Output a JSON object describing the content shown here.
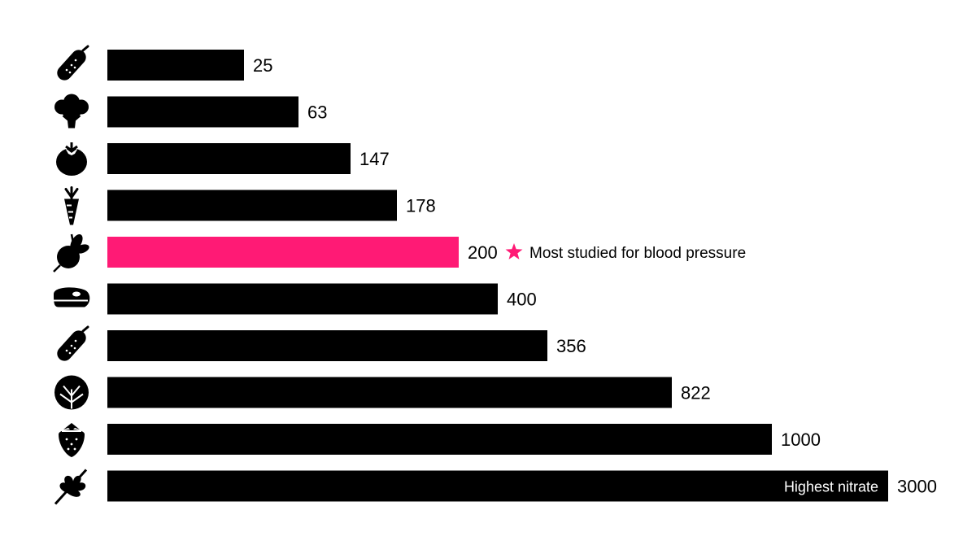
{
  "chart_data": {
    "type": "bar",
    "orientation": "horizontal",
    "categories": [
      "cucumber-icon",
      "broccoli-icon",
      "tomato-icon",
      "carrot-icon",
      "beetroot-icon",
      "steak-icon",
      "zucchini-icon",
      "cabbage-icon",
      "strawberry-icon",
      "arugula-icon"
    ],
    "values": [
      25,
      63,
      147,
      178,
      200,
      400,
      356,
      822,
      1000,
      3000
    ],
    "value_labels": [
      "25",
      "63",
      "147",
      "178",
      "200",
      "400",
      "356",
      "822",
      "1000",
      "3000"
    ],
    "highlight_index": 4,
    "colors": {
      "bar": "#000000",
      "highlight": "#ff1a75",
      "star": "#ff1a75",
      "text": "#000000",
      "inbar_text": "#ffffff"
    },
    "annotations": [
      {
        "index": 4,
        "text": "Most studied for blood pressure",
        "icon": "star-icon"
      },
      {
        "index": 9,
        "text": "Highest nitrate",
        "placement": "inside-bar"
      }
    ],
    "grid": false,
    "legend": "none"
  }
}
